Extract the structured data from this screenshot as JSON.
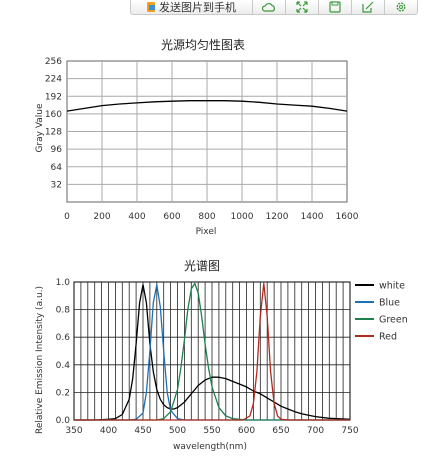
{
  "toolbar": {
    "send_label": "发送图片到手机",
    "icons": [
      "cloud-icon",
      "expand-icon",
      "save-icon",
      "edit-icon",
      "settings-icon"
    ],
    "accent": "#3c9a3c"
  },
  "chart_data": [
    {
      "type": "line",
      "title": "光源均匀性图表",
      "xlabel": "Pixel",
      "ylabel": "Gray Value",
      "xlim": [
        0,
        1600
      ],
      "ylim": [
        0,
        256
      ],
      "xticks": [
        "0",
        "200",
        "400",
        "600",
        "800",
        "1000",
        "1200",
        "1400",
        "1600"
      ],
      "yticks": [
        "32",
        "64",
        "96",
        "128",
        "160",
        "192",
        "224",
        "256"
      ],
      "grid": true,
      "series": [
        {
          "color": "#000000",
          "x": [
            0,
            100,
            200,
            300,
            400,
            500,
            600,
            700,
            800,
            900,
            1000,
            1100,
            1200,
            1300,
            1400,
            1500,
            1600
          ],
          "y": [
            165,
            170,
            175,
            178,
            180,
            182,
            183,
            184,
            184,
            184,
            183,
            181,
            178,
            176,
            174,
            170,
            165
          ]
        }
      ]
    },
    {
      "type": "line",
      "title": "光谱图",
      "xlabel": "wavelength(nm)",
      "ylabel": "Relative Emission Intensity (a.u.)",
      "xlim": [
        350,
        750
      ],
      "ylim": [
        0,
        1.0
      ],
      "xticks": [
        "350",
        "400",
        "450",
        "500",
        "550",
        "600",
        "650",
        "700",
        "750"
      ],
      "yticks": [
        "0.0",
        "0.2",
        "0.4",
        "0.6",
        "0.8",
        "1.0"
      ],
      "grid": true,
      "legend": "right",
      "series": [
        {
          "name": "white",
          "color": "#000000",
          "x": [
            350,
            380,
            400,
            410,
            420,
            430,
            435,
            440,
            445,
            450,
            455,
            460,
            465,
            470,
            475,
            480,
            485,
            490,
            495,
            500,
            510,
            520,
            530,
            540,
            550,
            560,
            570,
            580,
            590,
            600,
            610,
            620,
            630,
            640,
            650,
            660,
            670,
            680,
            690,
            700,
            720,
            750
          ],
          "y": [
            0,
            0,
            0.005,
            0.01,
            0.04,
            0.15,
            0.3,
            0.55,
            0.85,
            0.98,
            0.85,
            0.55,
            0.35,
            0.22,
            0.15,
            0.11,
            0.09,
            0.08,
            0.08,
            0.09,
            0.13,
            0.19,
            0.25,
            0.29,
            0.31,
            0.31,
            0.3,
            0.28,
            0.26,
            0.24,
            0.21,
            0.19,
            0.16,
            0.13,
            0.1,
            0.08,
            0.06,
            0.045,
            0.035,
            0.025,
            0.012,
            0.005
          ]
        },
        {
          "name": "Blue",
          "color": "#1f6fb5",
          "x": [
            350,
            430,
            440,
            450,
            455,
            460,
            465,
            470,
            475,
            480,
            485,
            490,
            500,
            510,
            530,
            750
          ],
          "y": [
            0,
            0,
            0.005,
            0.05,
            0.2,
            0.5,
            0.85,
            0.98,
            0.82,
            0.5,
            0.2,
            0.07,
            0.01,
            0,
            0,
            0
          ]
        },
        {
          "name": "Green",
          "color": "#1f7f4f",
          "x": [
            350,
            470,
            480,
            490,
            500,
            505,
            510,
            515,
            520,
            525,
            530,
            535,
            540,
            545,
            550,
            560,
            570,
            580,
            600,
            750
          ],
          "y": [
            0,
            0,
            0.01,
            0.06,
            0.22,
            0.38,
            0.58,
            0.8,
            0.95,
            0.99,
            0.92,
            0.75,
            0.55,
            0.38,
            0.24,
            0.09,
            0.03,
            0.01,
            0,
            0
          ]
        },
        {
          "name": "Red",
          "color": "#b22a1e",
          "x": [
            350,
            595,
            605,
            610,
            615,
            620,
            625,
            630,
            635,
            640,
            645,
            650,
            660,
            750
          ],
          "y": [
            0,
            0,
            0.03,
            0.12,
            0.35,
            0.75,
            0.99,
            0.75,
            0.35,
            0.12,
            0.03,
            0.005,
            0,
            0
          ]
        }
      ]
    }
  ]
}
